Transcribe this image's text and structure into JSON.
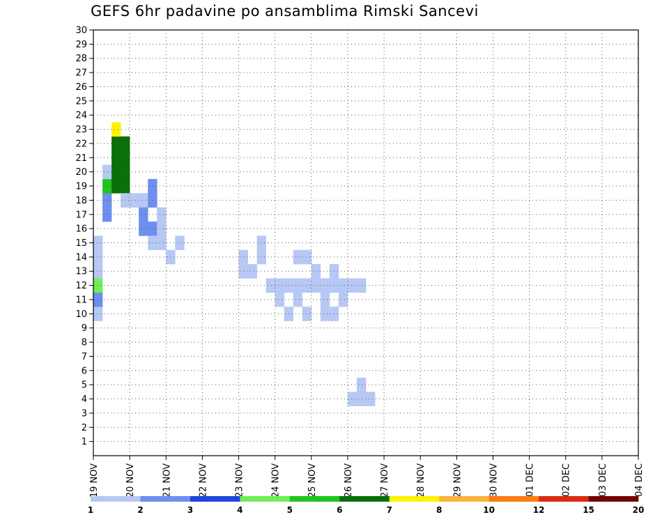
{
  "title": "GEFS 6hr padavine po ansamblima Rimski Sancevi",
  "chart_data": {
    "type": "heatmap",
    "title": "GEFS 6hr padavine po ansamblima Rimski Sancevi",
    "y_ticks": [
      1,
      2,
      3,
      4,
      5,
      6,
      7,
      8,
      9,
      10,
      11,
      12,
      13,
      14,
      15,
      16,
      17,
      18,
      19,
      20,
      21,
      22,
      23,
      24,
      25,
      26,
      27,
      28,
      29,
      30
    ],
    "ylim": [
      0,
      30
    ],
    "x_ticks": [
      "19 NOV",
      "20 NOV",
      "21 NOV",
      "22 NOV",
      "23 NOV",
      "24 NOV",
      "25 NOV",
      "26 NOV",
      "27 NOV",
      "28 NOV",
      "29 NOV",
      "30 NOV",
      "01 DEC",
      "02 DEC",
      "03 DEC",
      "04 DEC"
    ],
    "grid": true,
    "time_step_hours": 6,
    "colorbar": {
      "labels": [
        "1",
        "2",
        "3",
        "4",
        "5",
        "6",
        "7",
        "8",
        "10",
        "12",
        "15",
        "20"
      ],
      "colors": [
        "#b8c8f4",
        "#6d8ff0",
        "#2047dd",
        "#70ee55",
        "#1fc41f",
        "#0a6f0a",
        "#fff200",
        "#fdb33a",
        "#fb7d13",
        "#dd2a10",
        "#730404"
      ]
    },
    "cells": [
      [
        4,
        30,
        1
      ],
      [
        4,
        29,
        1
      ],
      [
        5,
        29,
        1
      ],
      [
        4,
        28,
        1
      ],
      [
        10,
        0,
        1
      ],
      [
        11,
        0,
        2
      ],
      [
        12,
        0,
        4
      ],
      [
        15,
        0,
        1
      ],
      [
        14,
        0,
        1
      ],
      [
        13,
        0,
        1
      ],
      [
        17,
        1,
        2
      ],
      [
        18,
        1,
        2
      ],
      [
        19,
        1,
        5
      ],
      [
        20,
        1,
        1
      ],
      [
        19,
        2,
        6
      ],
      [
        20,
        2,
        6
      ],
      [
        21,
        2,
        6
      ],
      [
        22,
        2,
        6
      ],
      [
        23,
        2,
        7
      ],
      [
        19,
        3,
        6
      ],
      [
        20,
        3,
        6
      ],
      [
        21,
        3,
        6
      ],
      [
        22,
        3,
        6
      ],
      [
        18,
        3,
        1
      ],
      [
        18,
        4,
        1
      ],
      [
        18,
        5,
        1
      ],
      [
        17,
        5,
        2
      ],
      [
        16,
        5,
        2
      ],
      [
        16,
        6,
        2
      ],
      [
        18,
        6,
        2
      ],
      [
        19,
        6,
        2
      ],
      [
        15,
        6,
        1
      ],
      [
        16,
        7,
        1
      ],
      [
        17,
        7,
        1
      ],
      [
        15,
        7,
        1
      ],
      [
        14,
        8,
        1
      ],
      [
        15,
        9,
        1
      ],
      [
        13,
        16,
        1
      ],
      [
        14,
        16,
        1
      ],
      [
        13,
        17,
        1
      ],
      [
        14,
        18,
        1
      ],
      [
        15,
        18,
        1
      ],
      [
        12,
        19,
        1
      ],
      [
        12,
        20,
        1
      ],
      [
        12,
        21,
        1
      ],
      [
        12,
        22,
        1
      ],
      [
        12,
        23,
        1
      ],
      [
        12,
        24,
        1
      ],
      [
        12,
        25,
        1
      ],
      [
        12,
        26,
        1
      ],
      [
        12,
        27,
        1
      ],
      [
        12,
        28,
        1
      ],
      [
        12,
        29,
        1
      ],
      [
        11,
        20,
        1
      ],
      [
        10,
        21,
        1
      ],
      [
        11,
        22,
        1
      ],
      [
        10,
        23,
        1
      ],
      [
        11,
        27,
        1
      ],
      [
        10,
        26,
        1
      ],
      [
        11,
        25,
        1
      ],
      [
        10,
        25,
        1
      ],
      [
        13,
        24,
        1
      ],
      [
        13,
        26,
        1
      ],
      [
        14,
        23,
        1
      ],
      [
        14,
        22,
        1
      ]
    ]
  }
}
